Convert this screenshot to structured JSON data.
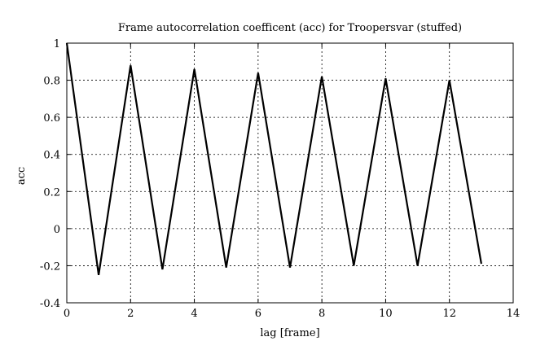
{
  "chart_data": {
    "type": "line",
    "title": "Frame autocorrelation coefficent (acc) for Troopersvar (stuffed)",
    "xlabel": "lag [frame]",
    "ylabel": "acc",
    "xlim": [
      0,
      14
    ],
    "ylim": [
      -0.4,
      1
    ],
    "xticks": [
      "0",
      "2",
      "4",
      "6",
      "8",
      "10",
      "12",
      "14"
    ],
    "yticks": [
      "-0.4",
      "-0.2",
      "0",
      "0.2",
      "0.4",
      "0.6",
      "0.8",
      "1"
    ],
    "grid": true,
    "series": [
      {
        "x": [
          0,
          1,
          2,
          3,
          4,
          5,
          6,
          7,
          8,
          9,
          10,
          11,
          12,
          13
        ],
        "y": [
          1.0,
          -0.25,
          0.88,
          -0.22,
          0.86,
          -0.21,
          0.84,
          -0.21,
          0.82,
          -0.2,
          0.81,
          -0.2,
          0.8,
          -0.19
        ]
      }
    ]
  }
}
